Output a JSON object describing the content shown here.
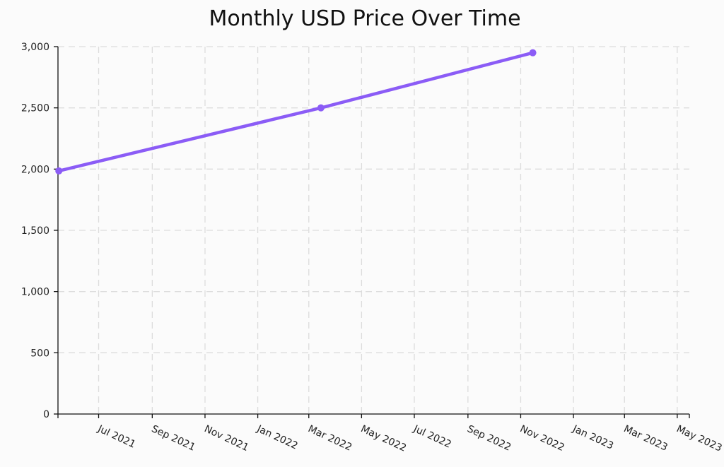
{
  "chart_data": {
    "type": "line",
    "title": "Monthly USD Price Over Time",
    "xlabel": "",
    "ylabel": "",
    "xlim": [
      "2021-05-15",
      "2023-05-15"
    ],
    "ylim": [
      0,
      3000
    ],
    "y_ticks": [
      0,
      500,
      1000,
      1500,
      2000,
      2500,
      3000
    ],
    "y_tick_labels": [
      "0",
      "500",
      "1,000",
      "1,500",
      "2,000",
      "2,500",
      "3,000"
    ],
    "x_ticks": [
      "2021-07-01",
      "2021-09-01",
      "2021-11-01",
      "2022-01-01",
      "2022-03-01",
      "2022-05-01",
      "2022-07-01",
      "2022-09-01",
      "2022-11-01",
      "2023-01-01",
      "2023-03-01",
      "2023-05-01"
    ],
    "x_tick_labels": [
      "Jul 2021",
      "Sep 2021",
      "Nov 2021",
      "Jan 2022",
      "Mar 2022",
      "May 2022",
      "Jul 2022",
      "Sep 2022",
      "Nov 2022",
      "Jan 2023",
      "Mar 2023",
      "May 2023"
    ],
    "grid": true,
    "legend": "none",
    "series": [
      {
        "color": "#8b5cf6",
        "points": [
          {
            "x": "2021-05-16",
            "y": 1985
          },
          {
            "x": "2022-03-15",
            "y": 2500
          },
          {
            "x": "2022-11-15",
            "y": 2950
          }
        ]
      }
    ]
  }
}
